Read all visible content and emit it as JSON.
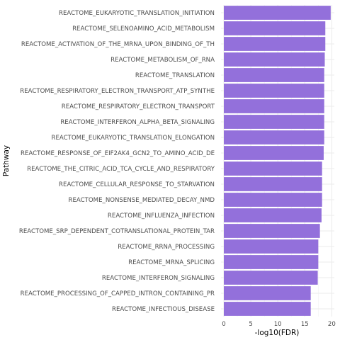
{
  "chart_data": {
    "type": "bar",
    "orientation": "horizontal",
    "xlabel": "-log10(FDR)",
    "ylabel": "Pathway",
    "xlim": [
      0,
      20.5
    ],
    "xticks": [
      0,
      5,
      10,
      15,
      20
    ],
    "grid": true,
    "bar_color": "#9370DB",
    "categories": [
      "REACTOME_EUKARYOTIC_TRANSLATION_INITIATION",
      "REACTOME_SELENOAMINO_ACID_METABOLISM",
      "REACTOME_ACTIVATION_OF_THE_MRNA_UPON_BINDING_OF_TH",
      "REACTOME_METABOLISM_OF_RNA",
      "REACTOME_TRANSLATION",
      "REACTOME_RESPIRATORY_ELECTRON_TRANSPORT_ATP_SYNTHE",
      "REACTOME_RESPIRATORY_ELECTRON_TRANSPORT",
      "REACTOME_INTERFERON_ALPHA_BETA_SIGNALING",
      "REACTOME_EUKARYOTIC_TRANSLATION_ELONGATION",
      "REACTOME_RESPONSE_OF_EIF2AK4_GCN2_TO_AMINO_ACID_DE",
      "REACTOME_THE_CITRIC_ACID_TCA_CYCLE_AND_RESPIRATORY",
      "REACTOME_CELLULAR_RESPONSE_TO_STARVATION",
      "REACTOME_NONSENSE_MEDIATED_DECAY_NMD",
      "REACTOME_INFLUENZA_INFECTION",
      "REACTOME_SRP_DEPENDENT_COTRANSLATIONAL_PROTEIN_TAR",
      "REACTOME_RRNA_PROCESSING",
      "REACTOME_MRNA_SPLICING",
      "REACTOME_INTERFERON_SIGNALING",
      "REACTOME_PROCESSING_OF_CAPPED_INTRON_CONTAINING_PR",
      "REACTOME_INFECTIOUS_DISEASE"
    ],
    "values": [
      19.8,
      18.8,
      18.8,
      18.7,
      18.6,
      18.6,
      18.6,
      18.6,
      18.6,
      18.5,
      18.2,
      18.2,
      18.2,
      18.1,
      17.8,
      17.5,
      17.5,
      17.4,
      16.1,
      16.1
    ]
  }
}
